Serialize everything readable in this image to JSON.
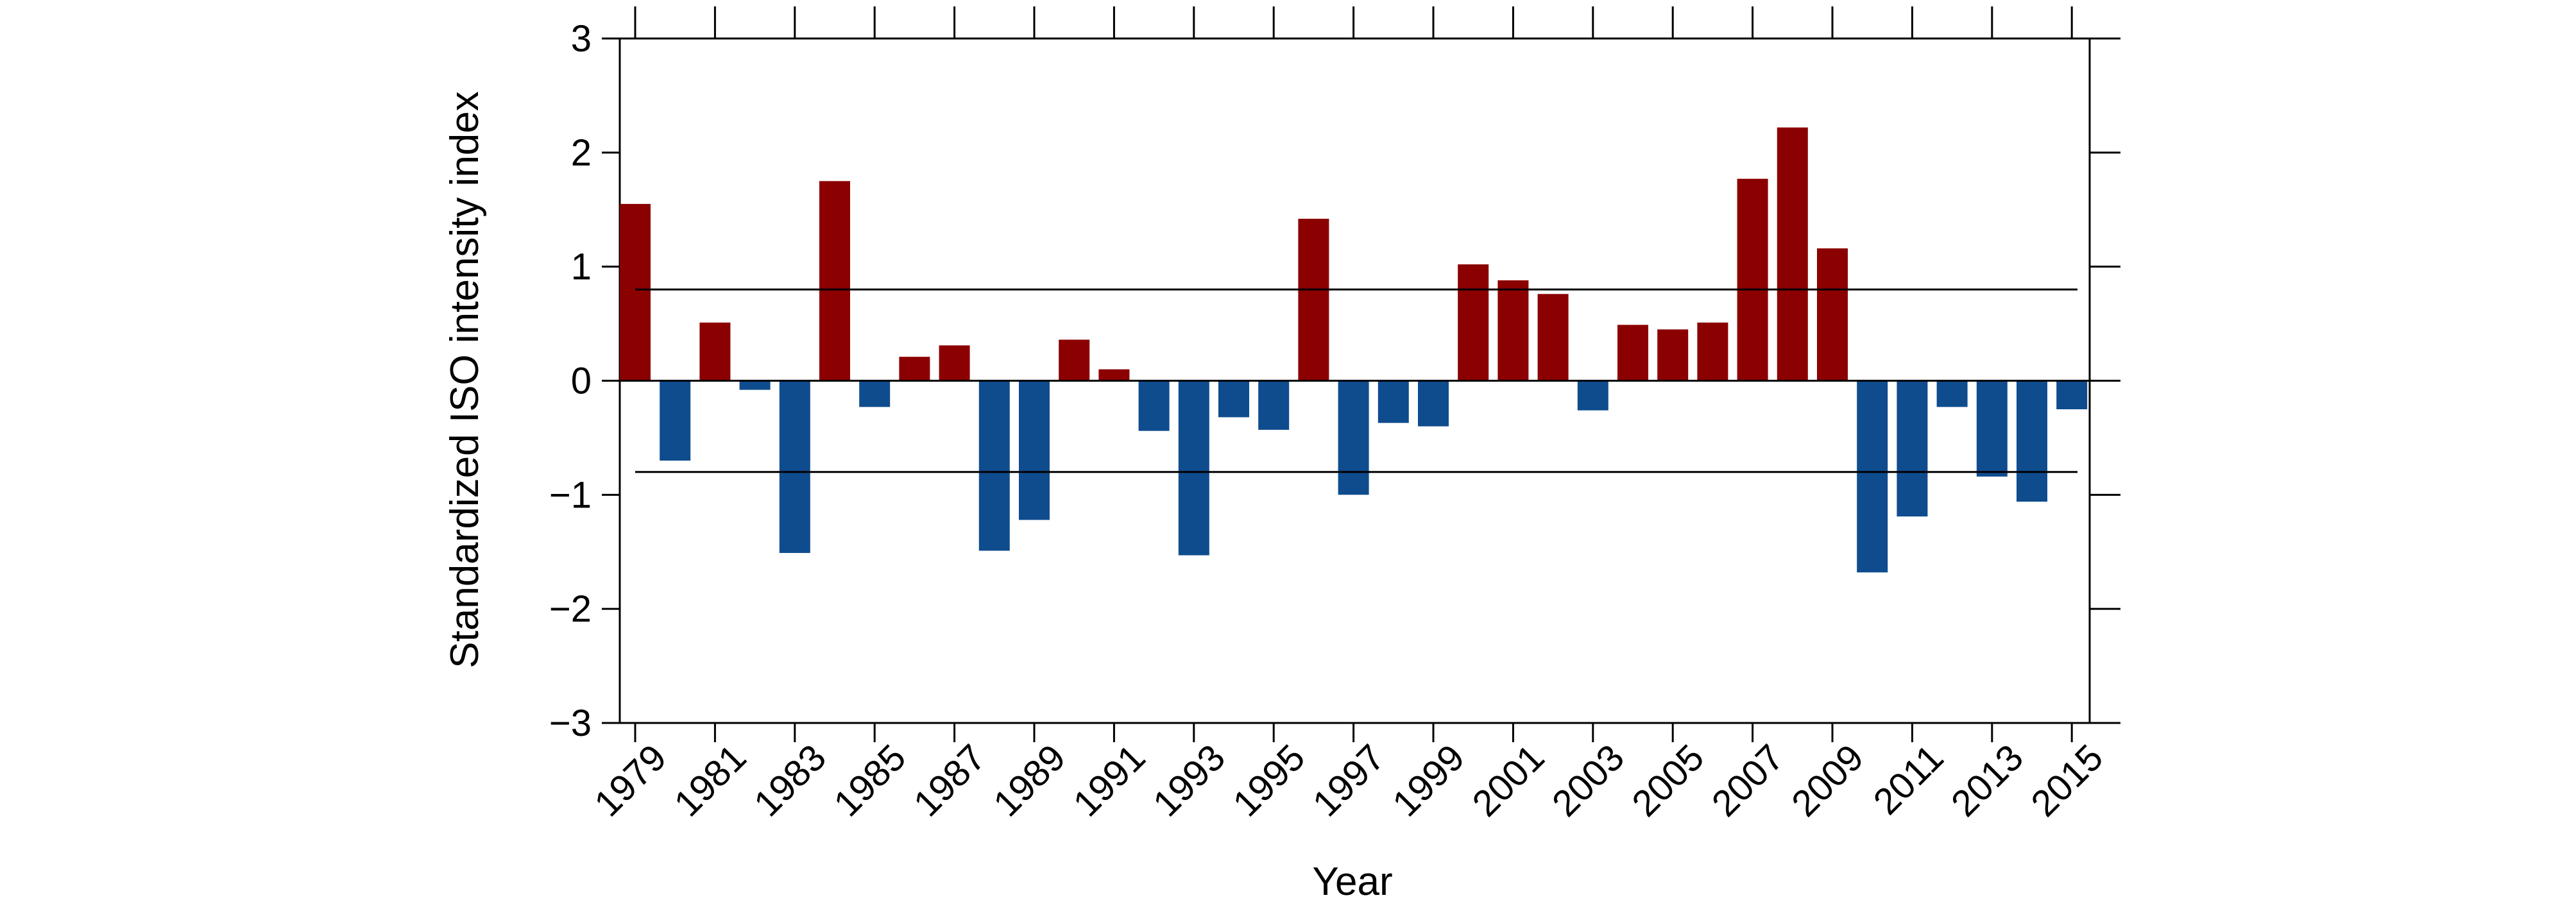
{
  "chart_data": {
    "type": "bar",
    "title": "",
    "xlabel": "Year",
    "ylabel": "Standardized ISO intensity index",
    "ylim": [
      -3,
      3
    ],
    "yticks": [
      -3,
      -2,
      -1,
      0,
      1,
      2,
      3
    ],
    "ytick_labels": [
      "−3",
      "−2",
      "−1",
      "0",
      "1",
      "2",
      "3"
    ],
    "categories": [
      1979,
      1980,
      1981,
      1982,
      1983,
      1984,
      1985,
      1986,
      1987,
      1988,
      1989,
      1990,
      1991,
      1992,
      1993,
      1994,
      1995,
      1996,
      1997,
      1998,
      1999,
      2000,
      2001,
      2002,
      2003,
      2004,
      2005,
      2006,
      2007,
      2008,
      2009,
      2010,
      2011,
      2012,
      2013,
      2014,
      2015
    ],
    "xtick_labels": [
      "1979",
      "1981",
      "1983",
      "1985",
      "1987",
      "1989",
      "1991",
      "1993",
      "1995",
      "1997",
      "1999",
      "2001",
      "2003",
      "2005",
      "2007",
      "2009",
      "2011",
      "2013",
      "2015"
    ],
    "values": [
      1.55,
      -0.7,
      0.51,
      -0.08,
      -1.51,
      1.75,
      -0.23,
      0.21,
      0.31,
      -1.49,
      -1.22,
      0.36,
      0.1,
      -0.44,
      -1.53,
      -0.32,
      -0.43,
      1.42,
      -1.0,
      -0.37,
      -0.4,
      1.02,
      0.88,
      0.76,
      -0.26,
      0.49,
      0.45,
      0.51,
      1.77,
      2.22,
      1.16,
      -1.68,
      -1.19,
      -0.23,
      -0.84,
      -1.06,
      -0.25
    ],
    "reference_lines": [
      0.8,
      -0.8
    ],
    "colors": {
      "positive": "#8b0000",
      "negative": "#0e4c8e",
      "axis": "#000000"
    },
    "grid": false,
    "legend": "none"
  }
}
